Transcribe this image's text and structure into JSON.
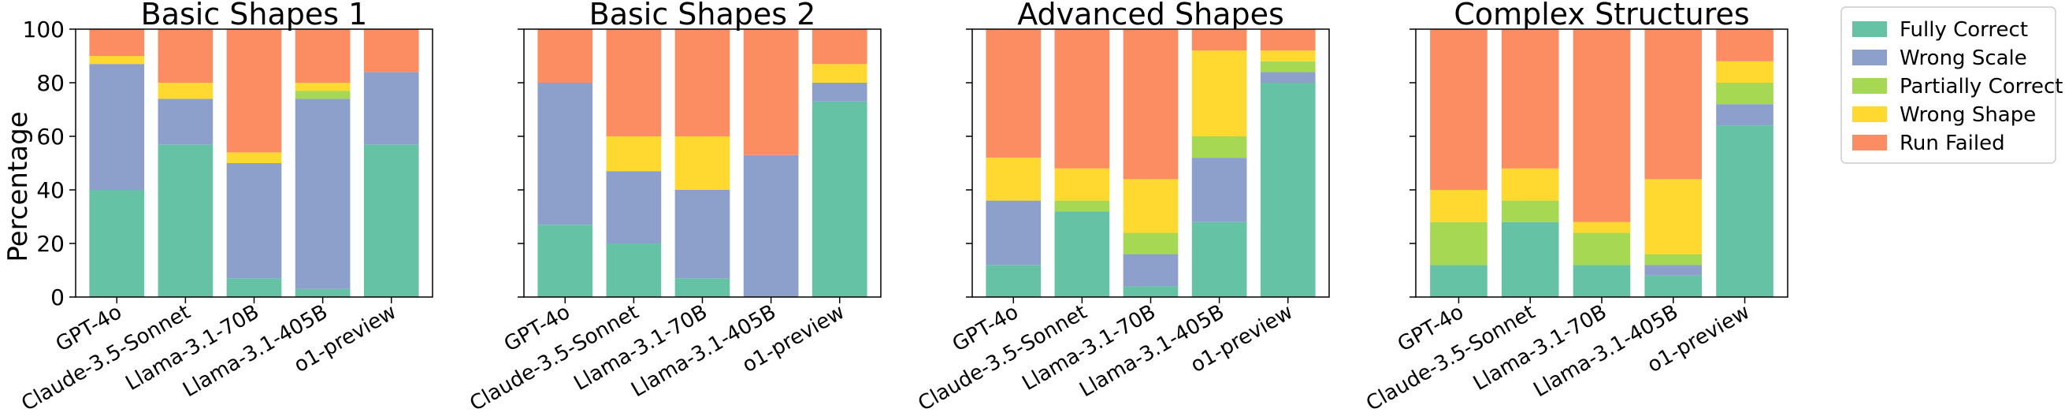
{
  "figure": {
    "ylabel": "Percentage",
    "legend_position": "right",
    "legend": [
      {
        "name": "Fully Correct",
        "color": "#66c2a5"
      },
      {
        "name": "Wrong Scale",
        "color": "#8da0cb"
      },
      {
        "name": "Partially Correct",
        "color": "#a6d854"
      },
      {
        "name": "Wrong Shape",
        "color": "#ffd92f"
      },
      {
        "name": "Run Failed",
        "color": "#fc8d62"
      }
    ]
  },
  "chart_data": [
    {
      "type": "bar",
      "stacked": true,
      "title": "Basic Shapes 1",
      "xlabel": "",
      "ylabel": "Percentage",
      "ylim": [
        0,
        100
      ],
      "yticks": [
        "0",
        "20",
        "40",
        "60",
        "80",
        "100"
      ],
      "categories": [
        "GPT-4o",
        "Claude-3.5-Sonnet",
        "Llama-3.1-70B",
        "Llama-3.1-405B",
        "o1-preview"
      ],
      "series": [
        {
          "name": "Fully Correct",
          "values": [
            40,
            57,
            7,
            3,
            57
          ]
        },
        {
          "name": "Wrong Scale",
          "values": [
            47,
            17,
            43,
            71,
            27
          ]
        },
        {
          "name": "Partially Correct",
          "values": [
            0,
            0,
            0,
            3,
            0
          ]
        },
        {
          "name": "Wrong Shape",
          "values": [
            3,
            6,
            4,
            3,
            0
          ]
        },
        {
          "name": "Run Failed",
          "values": [
            10,
            20,
            46,
            20,
            16
          ]
        }
      ]
    },
    {
      "type": "bar",
      "stacked": true,
      "title": "Basic Shapes 2",
      "xlabel": "",
      "ylabel": "",
      "ylim": [
        0,
        100
      ],
      "yticks": [
        "0",
        "20",
        "40",
        "60",
        "80",
        "100"
      ],
      "categories": [
        "GPT-4o",
        "Claude-3.5-Sonnet",
        "Llama-3.1-70B",
        "Llama-3.1-405B",
        "o1-preview"
      ],
      "series": [
        {
          "name": "Fully Correct",
          "values": [
            27,
            20,
            7,
            0,
            73
          ]
        },
        {
          "name": "Wrong Scale",
          "values": [
            53,
            27,
            33,
            53,
            7
          ]
        },
        {
          "name": "Partially Correct",
          "values": [
            0,
            0,
            0,
            0,
            0
          ]
        },
        {
          "name": "Wrong Shape",
          "values": [
            0,
            13,
            20,
            0,
            7
          ]
        },
        {
          "name": "Run Failed",
          "values": [
            20,
            40,
            40,
            47,
            13
          ]
        }
      ]
    },
    {
      "type": "bar",
      "stacked": true,
      "title": "Advanced Shapes",
      "xlabel": "",
      "ylabel": "",
      "ylim": [
        0,
        100
      ],
      "yticks": [
        "0",
        "20",
        "40",
        "60",
        "80",
        "100"
      ],
      "categories": [
        "GPT-4o",
        "Claude-3.5-Sonnet",
        "Llama-3.1-70B",
        "Llama-3.1-405B",
        "o1-preview"
      ],
      "series": [
        {
          "name": "Fully Correct",
          "values": [
            12,
            32,
            4,
            28,
            80
          ]
        },
        {
          "name": "Wrong Scale",
          "values": [
            24,
            0,
            12,
            24,
            4
          ]
        },
        {
          "name": "Partially Correct",
          "values": [
            0,
            4,
            8,
            8,
            4
          ]
        },
        {
          "name": "Wrong Shape",
          "values": [
            16,
            12,
            20,
            32,
            4
          ]
        },
        {
          "name": "Run Failed",
          "values": [
            48,
            52,
            56,
            8,
            8
          ]
        }
      ]
    },
    {
      "type": "bar",
      "stacked": true,
      "title": "Complex Structures",
      "xlabel": "",
      "ylabel": "",
      "ylim": [
        0,
        100
      ],
      "yticks": [
        "0",
        "20",
        "40",
        "60",
        "80",
        "100"
      ],
      "categories": [
        "GPT-4o",
        "Claude-3.5-Sonnet",
        "Llama-3.1-70B",
        "Llama-3.1-405B",
        "o1-preview"
      ],
      "series": [
        {
          "name": "Fully Correct",
          "values": [
            12,
            28,
            12,
            8,
            64
          ]
        },
        {
          "name": "Wrong Scale",
          "values": [
            0,
            0,
            0,
            4,
            8
          ]
        },
        {
          "name": "Partially Correct",
          "values": [
            16,
            8,
            12,
            4,
            8
          ]
        },
        {
          "name": "Wrong Shape",
          "values": [
            12,
            12,
            4,
            28,
            8
          ]
        },
        {
          "name": "Run Failed",
          "values": [
            60,
            52,
            72,
            56,
            12
          ]
        }
      ]
    }
  ]
}
